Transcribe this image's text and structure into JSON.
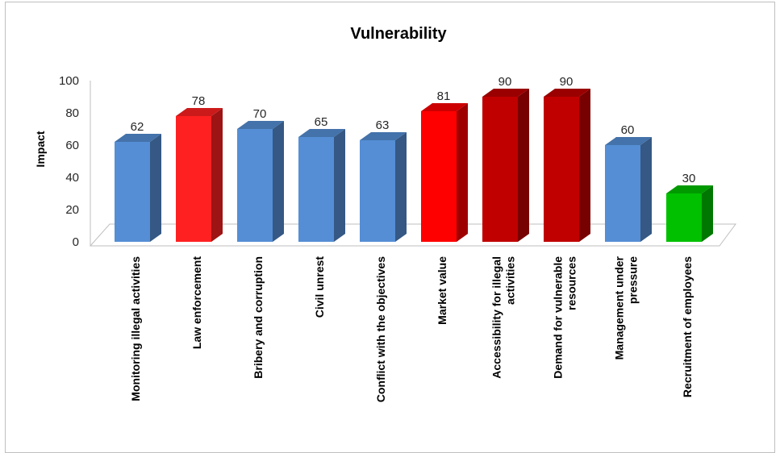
{
  "chart_data": {
    "type": "bar",
    "title": "Vulnerability",
    "xlabel": "",
    "ylabel": "Impact",
    "ylim": [
      0,
      100
    ],
    "yticks": [
      "0",
      "20",
      "40",
      "60",
      "80",
      "100"
    ],
    "categories": [
      [
        "Monitoring illegal activities"
      ],
      [
        "Law enforcement"
      ],
      [
        "Bribery and corruption"
      ],
      [
        "Civil unrest"
      ],
      [
        "Conflict with the objectives"
      ],
      [
        "Market value"
      ],
      [
        "Accessibility for illegal",
        "activities"
      ],
      [
        "Demand for vulnerable",
        "resources"
      ],
      [
        "Management under",
        "pressure"
      ],
      [
        "Recruitment of employees"
      ]
    ],
    "values": [
      62,
      78,
      70,
      65,
      63,
      81,
      90,
      90,
      60,
      30
    ],
    "data_labels": [
      "62",
      "78",
      "70",
      "65",
      "63",
      "81",
      "90",
      "90",
      "60",
      "30"
    ],
    "colors": [
      "#558ed5",
      "#ff2121",
      "#558ed5",
      "#558ed5",
      "#558ed5",
      "#ff0000",
      "#c00000",
      "#c00000",
      "#558ed5",
      "#00c000"
    ],
    "grid": false,
    "legend": "none"
  }
}
